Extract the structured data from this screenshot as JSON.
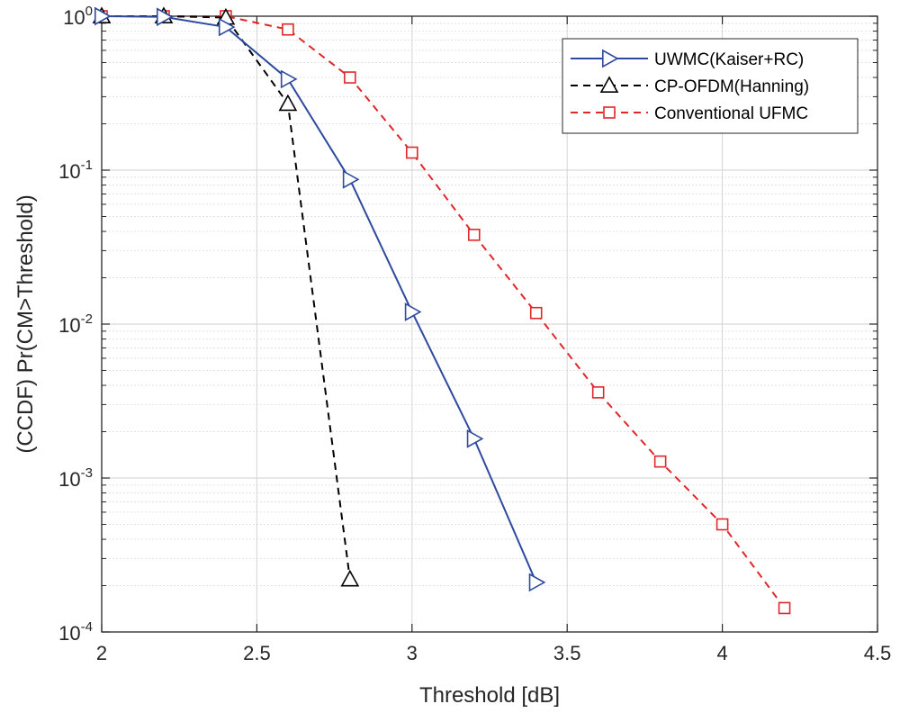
{
  "chart_data": {
    "type": "line",
    "xlabel": "Threshold [dB]",
    "ylabel": "(CCDF) Pr(CM>Threshold)",
    "xlim": [
      2,
      4.5
    ],
    "ylim": [
      0.0001,
      1
    ],
    "yscale": "log",
    "grid": true,
    "minor_grid": true,
    "legend_position": "top-right",
    "x_ticks": [
      "2",
      "2.5",
      "3",
      "3.5",
      "4",
      "4.5"
    ],
    "y_ticks": [
      {
        "base": "10",
        "exp": "0"
      },
      {
        "base": "10",
        "exp": "-1"
      },
      {
        "base": "10",
        "exp": "-2"
      },
      {
        "base": "10",
        "exp": "-3"
      },
      {
        "base": "10",
        "exp": "-4"
      }
    ],
    "series": [
      {
        "name": "UWMC(Kaiser+RC)",
        "color": "#2e4a9e",
        "dash": "solid",
        "marker": "triangle-right",
        "x": [
          2,
          2.2,
          2.4,
          2.6,
          2.8,
          3.0,
          3.2,
          3.4
        ],
        "y": [
          1.0,
          0.99,
          0.85,
          0.39,
          0.087,
          0.012,
          0.0018,
          0.00021
        ]
      },
      {
        "name": "CP-OFDM(Hanning)",
        "color": "#000000",
        "dash": "dashed",
        "marker": "triangle-up",
        "x": [
          2,
          2.2,
          2.4,
          2.6,
          2.8
        ],
        "y": [
          1.0,
          1.0,
          0.98,
          0.27,
          0.00022
        ]
      },
      {
        "name": "Conventional UFMC",
        "color": "#e0282a",
        "dash": "dashed",
        "marker": "square",
        "x": [
          2,
          2.2,
          2.4,
          2.6,
          2.8,
          3.0,
          3.2,
          3.4,
          3.6,
          3.8,
          4.0,
          4.2
        ],
        "y": [
          1.0,
          1.0,
          1.0,
          0.82,
          0.4,
          0.13,
          0.038,
          0.0118,
          0.0036,
          0.00128,
          0.0005,
          0.000143
        ]
      }
    ]
  }
}
